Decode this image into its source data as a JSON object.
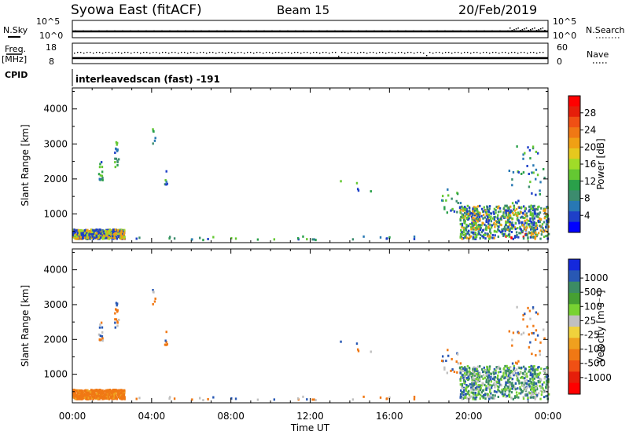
{
  "header": {
    "title": "Syowa East (fitACF)",
    "beam": "Beam 15",
    "date": "20/Feb/2019"
  },
  "status_panels": {
    "nsky_label": "N.Sky",
    "nsearch_label": "N.Search",
    "nsky_range": [
      "10^0",
      "10^5"
    ],
    "freq_label": "Freq.",
    "freq_unit": "[MHz]",
    "freq_range": [
      8,
      18
    ],
    "cpid_label": "CPID",
    "nave_label": "Nave",
    "nave_range": [
      0,
      60
    ],
    "cpid_text": "interleavedscan (fast) -191"
  },
  "chart_data": [
    {
      "type": "heatmap",
      "name": "Power",
      "ylabel": "Slant Range [km]",
      "xlabel": "Time UT",
      "x_ticks": [
        "00:00",
        "04:00",
        "08:00",
        "12:00",
        "16:00",
        "20:00",
        "00:00"
      ],
      "x_range_hours": [
        0,
        24
      ],
      "y_ticks": [
        1000,
        2000,
        3000,
        4000
      ],
      "ylim": [
        180,
        4600
      ],
      "colorbar": {
        "label": "Power [dB]",
        "ticks": [
          "4",
          "8",
          "12",
          "16",
          "20",
          "24",
          "28"
        ],
        "range": [
          0,
          32
        ],
        "colors": [
          "#0000ff",
          "#1e40c8",
          "#2878b4",
          "#3c8c6e",
          "#2aa04a",
          "#64c832",
          "#a0dc28",
          "#e6c81e",
          "#f0a014",
          "#f07814",
          "#f05014",
          "#e61e0a",
          "#ff0000"
        ]
      }
    },
    {
      "type": "heatmap",
      "name": "Velocity",
      "ylabel": "Slant Range [km]",
      "xlabel": "Time UT",
      "x_ticks": [
        "00:00",
        "04:00",
        "08:00",
        "12:00",
        "16:00",
        "20:00",
        "00:00"
      ],
      "x_range_hours": [
        0,
        24
      ],
      "y_ticks": [
        1000,
        2000,
        3000,
        4000
      ],
      "ylim": [
        180,
        4600
      ],
      "colorbar": {
        "label": "Velocity [m s⁻¹]",
        "ticks": [
          "1000",
          "500",
          "100",
          "25",
          "-25",
          "-100",
          "-500",
          "-1000"
        ],
        "colors": [
          "#1428dc",
          "#2858b4",
          "#3c8c64",
          "#46a032",
          "#78d232",
          "#c0c0c0",
          "#f0d23c",
          "#f0a01e",
          "#f07814",
          "#f05014",
          "#e61e0a",
          "#ff0000"
        ]
      }
    }
  ],
  "axis": {
    "xlabel": "Time UT",
    "x_ticks": [
      "00:00",
      "04:00",
      "08:00",
      "12:00",
      "16:00",
      "20:00",
      "00:00"
    ]
  }
}
